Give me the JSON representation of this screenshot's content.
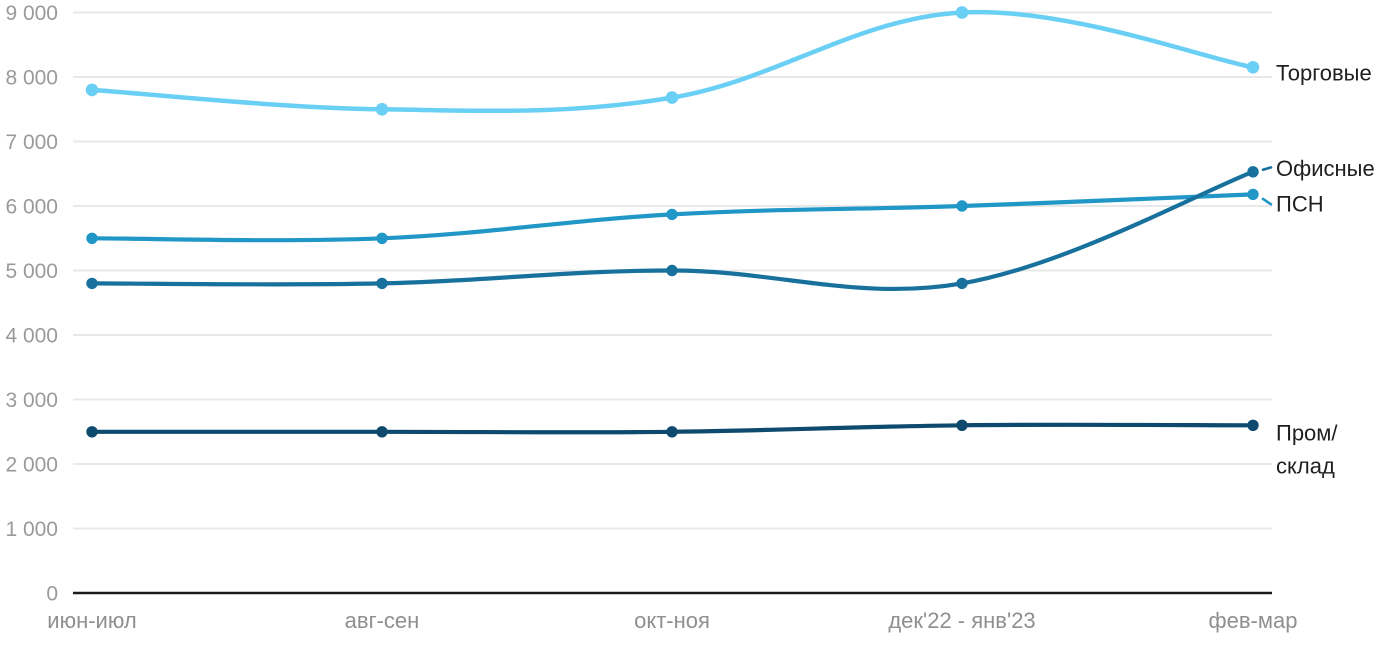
{
  "colors": {
    "background": "#ffffff",
    "gridline": "#e8e8e8",
    "zero_axis": "#1a1a1a",
    "y_tick_label": "#9a9a9a",
    "x_tick_label": "#8f8f8f",
    "series_label_text": "#1f1f1f"
  },
  "chart_data": {
    "type": "line",
    "title": "",
    "xlabel": "",
    "ylabel": "",
    "ylim": [
      0,
      9000
    ],
    "y_tick_step": 1000,
    "grid": true,
    "smooth": true,
    "legend_position": "right-of-line-ends",
    "categories": [
      "июн-июл",
      "авг-сен",
      "окт-ноя",
      "дек'22 - янв'23",
      "фев-мар"
    ],
    "y_tick_labels": [
      "0",
      "1 000",
      "2 000",
      "3 000",
      "4 000",
      "5 000",
      "6 000",
      "7 000",
      "8 000",
      "9 000"
    ],
    "series": [
      {
        "key": "torgovye",
        "name": "Торговые",
        "label_lines": [
          "Торговые"
        ],
        "values": [
          7800,
          7500,
          7680,
          9000,
          8150
        ],
        "color": "#6ACFF4",
        "label_dy": 5,
        "leader": false
      },
      {
        "key": "psn",
        "name": "ПСН",
        "label_lines": [
          "ПСН"
        ],
        "values": [
          5500,
          5500,
          5870,
          6000,
          6180
        ],
        "color": "#2097C6",
        "label_dy": 9,
        "leader": true
      },
      {
        "key": "ofisnye",
        "name": "Офисные",
        "label_lines": [
          "Офисные"
        ],
        "values": [
          4800,
          4800,
          5000,
          4800,
          6530
        ],
        "color": "#17719C",
        "label_dy": -4,
        "leader": true
      },
      {
        "key": "prom-sklad",
        "name": "Пром/склад",
        "label_lines": [
          "Пром/",
          "склад"
        ],
        "values": [
          2500,
          2500,
          2500,
          2600,
          2600
        ],
        "color": "#0E4A6E",
        "label_dy": 7,
        "leader": false
      }
    ]
  }
}
